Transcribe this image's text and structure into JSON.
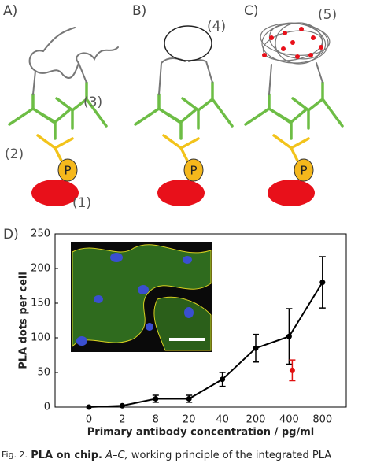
{
  "panels": {
    "a": "A)",
    "b": "B)",
    "c": "C)",
    "d": "D)"
  },
  "labels": [
    "(1)",
    "(2)",
    "(3)",
    "(4)",
    "(5)"
  ],
  "protein": [
    "P",
    "P",
    "P"
  ],
  "caption": {
    "fig": "Fig. 2.",
    "title": "PLA on chip.",
    "ref": "A–C,",
    "text": "working principle of the integrated PLA"
  },
  "chart_data": {
    "type": "line",
    "xlabel": "Primary antibody concentration / pg/ml",
    "ylabel": "PLA dots per cell",
    "categories": [
      "0",
      "2",
      "8",
      "20",
      "40",
      "200",
      "400",
      "800"
    ],
    "series": [
      {
        "color": "#000000",
        "values": [
          0,
          2,
          12,
          12,
          40,
          85,
          102,
          180
        ],
        "errors": [
          null,
          null,
          5,
          5,
          10,
          20,
          40,
          37
        ]
      },
      {
        "color": "#e01010",
        "values": [
          null,
          null,
          null,
          null,
          null,
          null,
          53,
          null
        ],
        "errors": [
          null,
          null,
          null,
          null,
          null,
          null,
          15,
          null
        ]
      }
    ],
    "ylim": [
      0,
      250
    ],
    "yticks": [
      0,
      50,
      100,
      150,
      200,
      250
    ]
  }
}
